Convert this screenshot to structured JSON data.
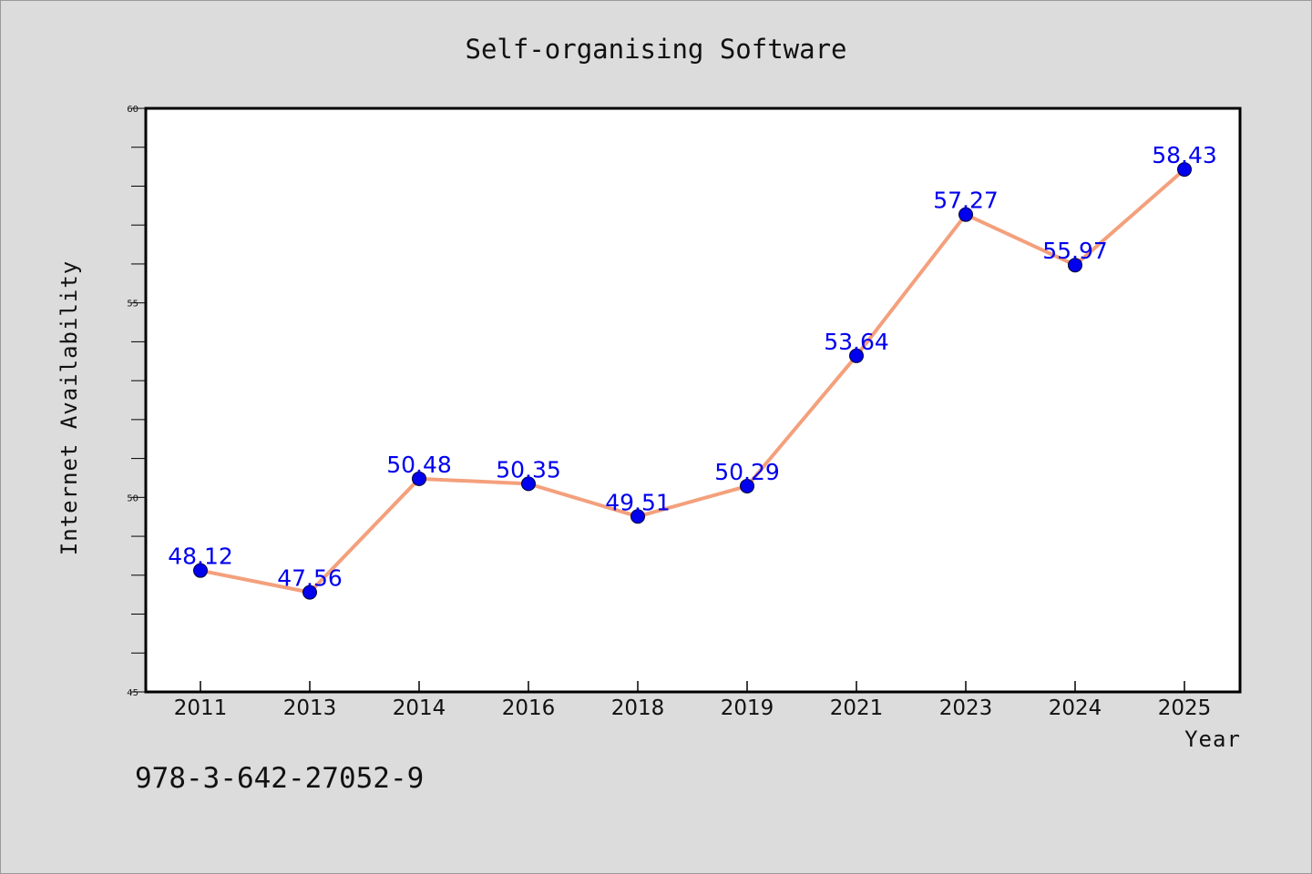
{
  "chart_data": {
    "type": "line",
    "title": "Self-organising Software",
    "xlabel": "Year",
    "ylabel": "Internet Availability",
    "categories": [
      "2011",
      "2013",
      "2014",
      "2016",
      "2018",
      "2019",
      "2021",
      "2023",
      "2024",
      "2025"
    ],
    "series": [
      {
        "values": [
          48.12,
          47.56,
          50.48,
          50.35,
          49.51,
          50.29,
          53.64,
          57.27,
          55.97,
          58.43
        ]
      }
    ],
    "data_labels": [
      "48.12",
      "47.56",
      "50.48",
      "50.35",
      "49.51",
      "50.29",
      "53.64",
      "57.27",
      "55.97",
      "58.43"
    ],
    "ylim": [
      45,
      60
    ],
    "yticks": [
      45,
      50,
      55,
      60
    ],
    "ytick_labels": [
      "45",
      "50",
      "55",
      "60"
    ],
    "grid": false,
    "colors": {
      "line": "#f4a07c",
      "marker": "#0000ee",
      "data_label": "#0000ee",
      "background": "#dcdcdc",
      "plot_area": "#ffffff"
    }
  },
  "footer": {
    "isbn": "978-3-642-27052-9"
  }
}
